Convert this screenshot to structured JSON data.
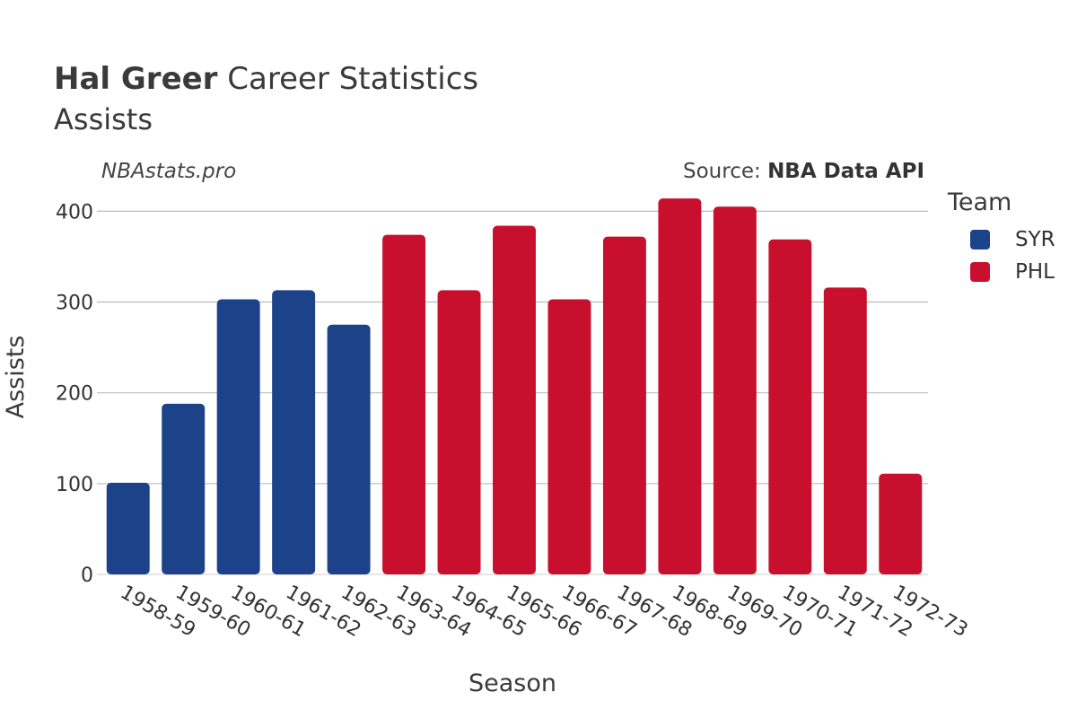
{
  "header": {
    "title_bold": "Hal Greer",
    "title_rest": " Career Statistics",
    "subtitle": "Assists",
    "watermark": "NBAstats.pro",
    "source_prefix": "Source: ",
    "source_name": "NBA Data API"
  },
  "legend": {
    "title": "Team",
    "items": [
      {
        "label": "SYR",
        "color": "#1c428a"
      },
      {
        "label": "PHL",
        "color": "#c8102e"
      }
    ]
  },
  "chart_data": {
    "type": "bar",
    "title": "Hal Greer Career Statistics",
    "subtitle": "Assists",
    "xlabel": "Season",
    "ylabel": "Assists",
    "ylim": [
      0,
      430
    ],
    "yticks": [
      0,
      100,
      200,
      300,
      400
    ],
    "grid": true,
    "legend_position": "right",
    "categories": [
      "1958-59",
      "1959-60",
      "1960-61",
      "1961-62",
      "1962-63",
      "1963-64",
      "1964-65",
      "1965-66",
      "1966-67",
      "1967-68",
      "1968-69",
      "1969-70",
      "1970-71",
      "1971-72",
      "1972-73"
    ],
    "values": [
      101,
      188,
      303,
      313,
      275,
      374,
      313,
      384,
      303,
      372,
      414,
      405,
      369,
      316,
      111
    ],
    "teams": [
      "SYR",
      "SYR",
      "SYR",
      "SYR",
      "SYR",
      "PHL",
      "PHL",
      "PHL",
      "PHL",
      "PHL",
      "PHL",
      "PHL",
      "PHL",
      "PHL",
      "PHL"
    ],
    "series": [
      {
        "name": "SYR",
        "color": "#1c428a"
      },
      {
        "name": "PHL",
        "color": "#c8102e"
      }
    ]
  }
}
